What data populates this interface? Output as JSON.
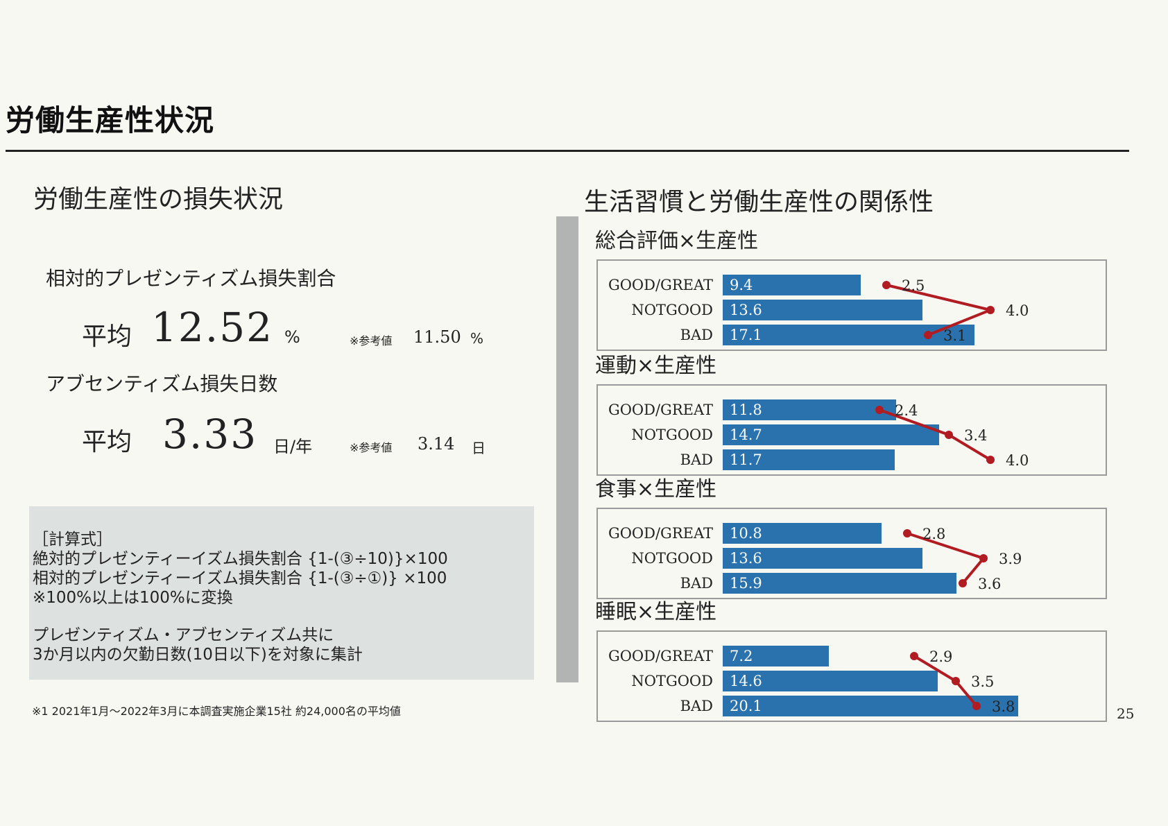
{
  "title": "労働生産性状況",
  "left": {
    "heading": "労働生産性の損失状況",
    "presenteeism": {
      "label": "相対的プレゼンティズム損失割合",
      "avg_label": "平均",
      "value": "12.52",
      "unit": "%",
      "ref_note": "※参考値",
      "ref_value": "11.50",
      "ref_unit": "%"
    },
    "absenteeism": {
      "label": "アブセンティズム損失日数",
      "avg_label": "平均",
      "value": "3.33",
      "unit": "日/年",
      "ref_note": "※参考値",
      "ref_value": "3.14",
      "ref_unit": "日"
    },
    "formula": {
      "lines": [
        "［計算式］",
        "絶対的プレゼンティーイズム損失割合 {1-(③÷10)}×100",
        "相対的プレゼンティーイズム損失割合 {1-(③÷①)} ×100",
        "※100%以上は100%に変換",
        "",
        "プレゼンティズム・アブセンティズム共に",
        "3か月以内の欠勤日数(10日以下)を対象に集計"
      ]
    },
    "footnote": "※1 2021年1月～2022年3月に本調査実施企業15社 約24,000名の平均値"
  },
  "right": {
    "heading": "生活習慣と労働生産性の関係性"
  },
  "page_number": "25",
  "colors": {
    "bar": "#2a72ad",
    "line": "#b01c22",
    "panel": "#dde1df",
    "side_bar": "#b2b4b4"
  },
  "chart_data": [
    {
      "type": "bar",
      "title": "総合評価×生産性",
      "categories": [
        "GOOD/GREAT",
        "NOTGOOD",
        "BAD"
      ],
      "bar_values": [
        9.4,
        13.6,
        17.1
      ],
      "line_values": [
        2.5,
        4.0,
        3.1
      ]
    },
    {
      "type": "bar",
      "title": "運動×生産性",
      "categories": [
        "GOOD/GREAT",
        "NOTGOOD",
        "BAD"
      ],
      "bar_values": [
        11.8,
        14.7,
        11.7
      ],
      "line_values": [
        2.4,
        3.4,
        4.0
      ]
    },
    {
      "type": "bar",
      "title": "食事×生産性",
      "categories": [
        "GOOD/GREAT",
        "NOTGOOD",
        "BAD"
      ],
      "bar_values": [
        10.8,
        13.6,
        15.9
      ],
      "line_values": [
        2.8,
        3.9,
        3.6
      ]
    },
    {
      "type": "bar",
      "title": "睡眠×生産性",
      "categories": [
        "GOOD/GREAT",
        "NOTGOOD",
        "BAD"
      ],
      "bar_values": [
        7.2,
        14.6,
        20.1
      ],
      "line_values": [
        2.9,
        3.5,
        3.8
      ]
    }
  ]
}
